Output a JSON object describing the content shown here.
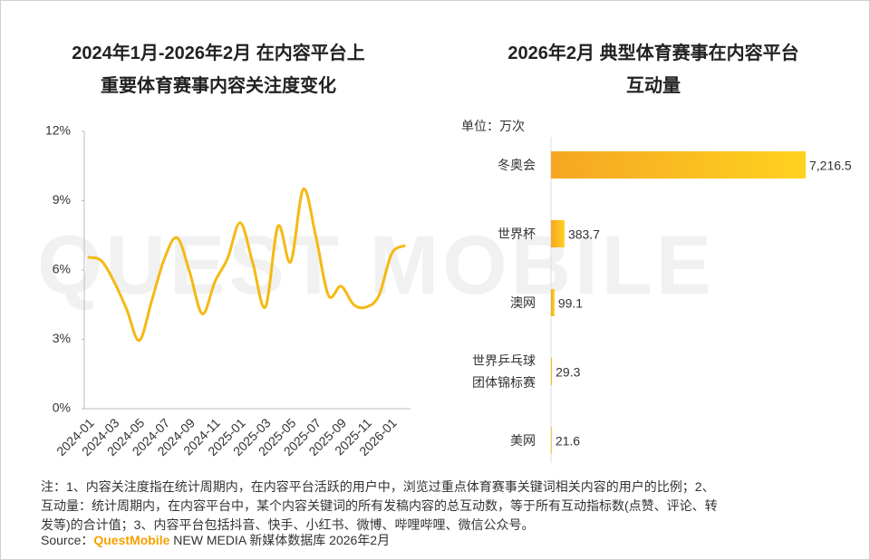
{
  "watermark": "QUEST MOBILE",
  "chart_data": [
    {
      "type": "line",
      "title": "2024年1月-2026年2月 在内容平台上\n重要体育赛事内容关注度变化",
      "categories": [
        "2024-01",
        null,
        "2024-03",
        null,
        "2024-05",
        null,
        "2024-07",
        null,
        "2024-09",
        null,
        "2024-11",
        null,
        "2025-01",
        null,
        "2025-03",
        null,
        "2025-05",
        null,
        "2025-07",
        null,
        "2025-09",
        null,
        "2025-11",
        null,
        "2026-01",
        null
      ],
      "series": [
        {
          "name": "关注度",
          "color": "#f5b915",
          "values": [
            6.55,
            6.4,
            5.5,
            4.3,
            2.95,
            4.7,
            6.5,
            7.4,
            5.9,
            4.1,
            5.5,
            6.5,
            8.05,
            6.3,
            4.4,
            7.9,
            6.35,
            9.5,
            7.45,
            4.9,
            5.3,
            4.5,
            4.4,
            4.9,
            6.7,
            7.05
          ]
        }
      ],
      "ylim": [
        0,
        12
      ],
      "yticks": [
        {
          "value": 0,
          "label": "0%"
        },
        {
          "value": 3,
          "label": "3%"
        },
        {
          "value": 6,
          "label": "6%"
        },
        {
          "value": 9,
          "label": "9%"
        },
        {
          "value": 12,
          "label": "12%"
        }
      ]
    },
    {
      "type": "hbar",
      "title": "2026年2月 典型体育赛事在内容平台\n互动量",
      "unit": "单位：万次",
      "categories": [
        "冬奥会",
        "世界杯",
        "澳网",
        "世界乒乓球\n团体锦标赛",
        "美网"
      ],
      "values": [
        7216.5,
        383.7,
        99.1,
        29.3,
        21.6
      ],
      "value_labels": [
        "7,216.5",
        "383.7",
        "99.1",
        "29.3",
        "21.6"
      ],
      "color": [
        "#f5a623",
        "#ffd21f"
      ]
    }
  ],
  "note": [
    "注：1、内容关注度指在统计周期内，在内容平台活跃的用户中，浏览过重点体育赛事关键词相关内容的用户的比例；2、",
    "互动量：统计周期内，在内容平台中，某个内容关键词的所有发稿内容的总互动数，等于所有互动指标数(点赞、评论、转",
    "发等)的合计值；3、内容平台包括抖音、快手、小红书、微博、哔哩哔哩、微信公众号。"
  ],
  "source": [
    "Source：",
    "QuestMobile",
    " NEW MEDIA 新媒体数据库 2026年2月"
  ]
}
